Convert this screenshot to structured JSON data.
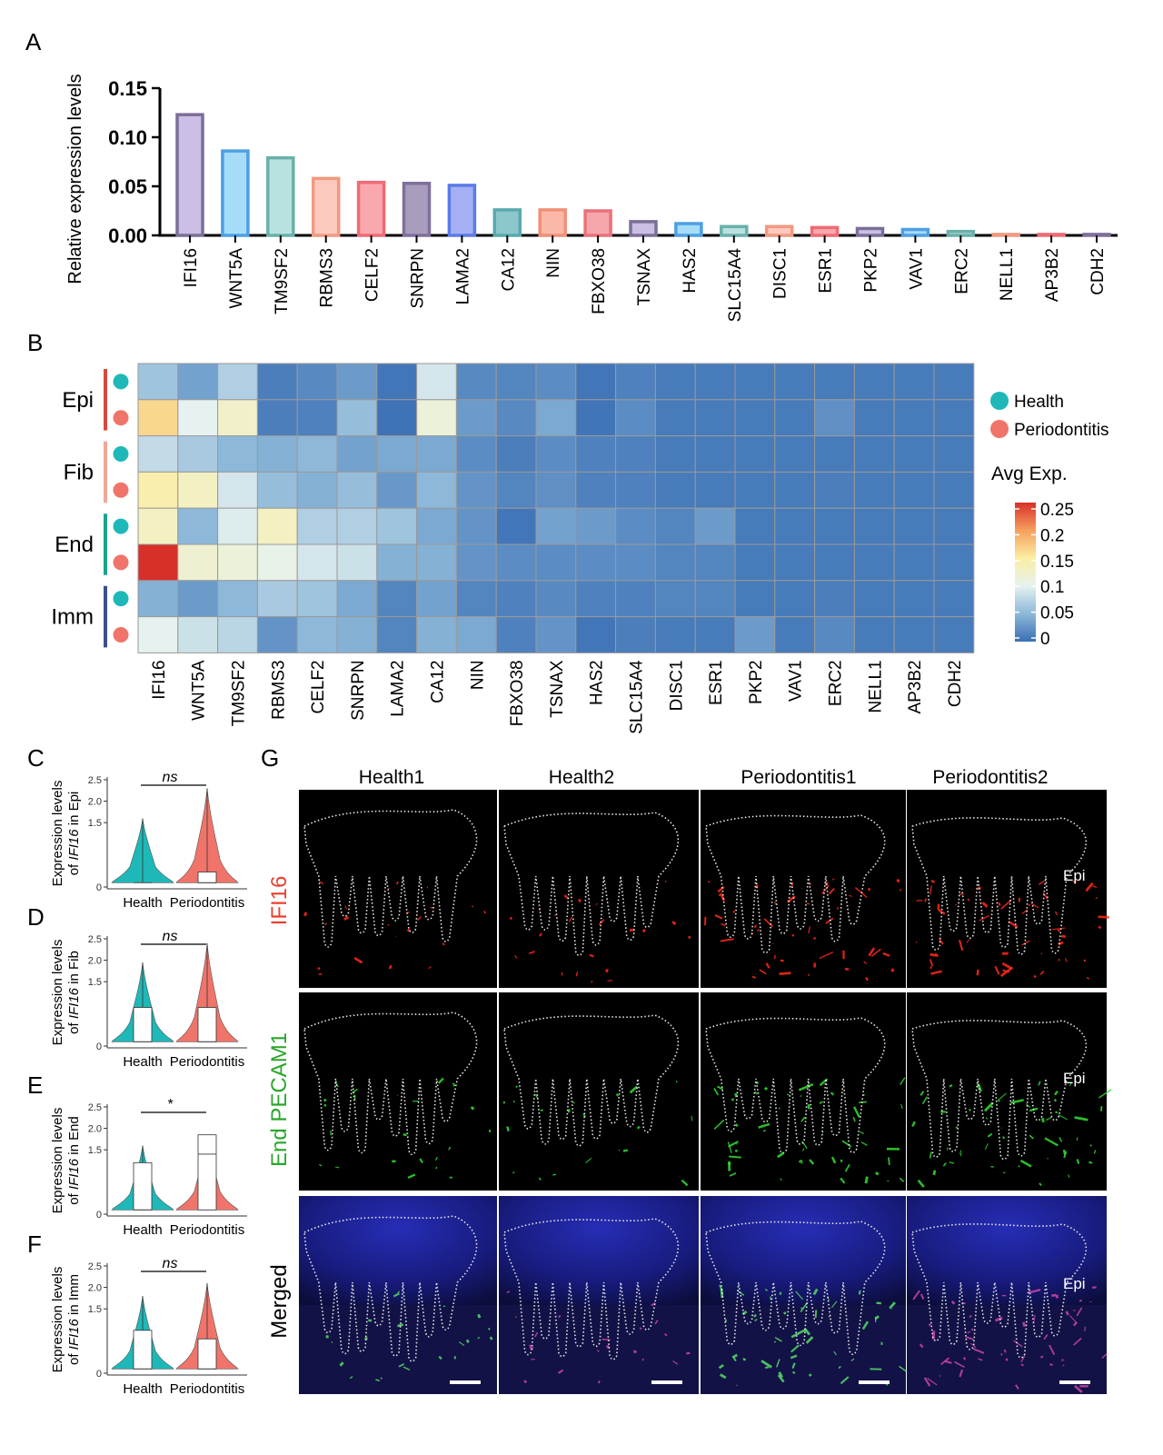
{
  "panels": {
    "A": "A",
    "B": "B",
    "C": "C",
    "D": "D",
    "E": "E",
    "F": "F",
    "G": "G"
  },
  "colors": {
    "health": "#1fb8b8",
    "periodontitis": "#f0746a",
    "bar_fills": [
      "#cbbfe6",
      "#a6dcf7",
      "#b9e2df",
      "#fcc9be",
      "#f9a9ae",
      "#a99dbd",
      "#a4b0f3",
      "#8cc7cb",
      "#fbb8a8",
      "#f5a6ab",
      "#cbbfe6",
      "#a6dcf7",
      "#b9e2df",
      "#fcc9be",
      "#f9a9ae",
      "#cbbfe6",
      "#a6dcf7",
      "#b9e2df",
      "#fcc9be",
      "#f9a9ae",
      "#a99dbd"
    ],
    "bar_strokes": [
      "#7b6f97",
      "#4d9fe3",
      "#6ab0ab",
      "#f09a80",
      "#ee6b76",
      "#7f6f9a",
      "#5d7be6",
      "#5aa8ad",
      "#f08f78",
      "#e8727a",
      "#7b6f97",
      "#4d9fe3",
      "#6ab0ab",
      "#f09a80",
      "#ee6b76",
      "#7b6f97",
      "#4d9fe3",
      "#6ab0ab",
      "#f09a80",
      "#ee6b76",
      "#7f6f9a"
    ]
  },
  "chart_data": [
    {
      "id": "A",
      "type": "bar",
      "ylabel": "Relative expression levels",
      "ylim": [
        0,
        0.15
      ],
      "yticks": [
        "0.00",
        "0.05",
        "0.10",
        "0.15"
      ],
      "categories": [
        "IFI16",
        "WNT5A",
        "TM9SF2",
        "RBMS3",
        "CELF2",
        "SNRPN",
        "LAMA2",
        "CA12",
        "NIN",
        "FBXO38",
        "TSNAX",
        "HAS2",
        "SLC15A4",
        "DISC1",
        "ESR1",
        "PKP2",
        "VAV1",
        "ERC2",
        "NELL1",
        "AP3B2",
        "CDH2"
      ],
      "values": [
        0.123,
        0.086,
        0.079,
        0.058,
        0.054,
        0.053,
        0.051,
        0.026,
        0.026,
        0.025,
        0.014,
        0.012,
        0.009,
        0.009,
        0.008,
        0.007,
        0.006,
        0.004,
        0.001,
        0.001,
        0.001
      ]
    },
    {
      "id": "B",
      "type": "heatmap",
      "columns": [
        "IFI16",
        "WNT5A",
        "TM9SF2",
        "RBMS3",
        "CELF2",
        "SNRPN",
        "LAMA2",
        "CA12",
        "NIN",
        "FBXO38",
        "TSNAX",
        "HAS2",
        "SLC15A4",
        "DISC1",
        "ESR1",
        "PKP2",
        "VAV1",
        "ERC2",
        "NELL1",
        "AP3B2",
        "CDH2"
      ],
      "groups": [
        "Epi",
        "Fib",
        "End",
        "Imm"
      ],
      "group_colors": [
        "#d84a3c",
        "#f2a796",
        "#1aa48c",
        "#3a4f8c"
      ],
      "row_conditions": [
        "Health",
        "Periodontitis",
        "Health",
        "Periodontitis",
        "Health",
        "Periodontitis",
        "Health",
        "Periodontitis"
      ],
      "values": [
        [
          0.06,
          0.035,
          0.07,
          0.01,
          0.018,
          0.03,
          0.005,
          0.09,
          0.018,
          0.015,
          0.02,
          0.005,
          0.012,
          0.008,
          0.008,
          0.008,
          0.008,
          0.008,
          0.008,
          0.008,
          0.008
        ],
        [
          0.165,
          0.1,
          0.125,
          0.01,
          0.012,
          0.055,
          0.003,
          0.115,
          0.03,
          0.018,
          0.04,
          0.004,
          0.02,
          0.008,
          0.008,
          0.008,
          0.008,
          0.022,
          0.008,
          0.008,
          0.008
        ],
        [
          0.08,
          0.065,
          0.05,
          0.045,
          0.05,
          0.035,
          0.04,
          0.04,
          0.02,
          0.01,
          0.02,
          0.012,
          0.012,
          0.008,
          0.008,
          0.008,
          0.008,
          0.008,
          0.008,
          0.008,
          0.008
        ],
        [
          0.145,
          0.13,
          0.09,
          0.055,
          0.045,
          0.055,
          0.028,
          0.05,
          0.025,
          0.015,
          0.022,
          0.012,
          0.012,
          0.008,
          0.008,
          0.008,
          0.008,
          0.01,
          0.008,
          0.008,
          0.008
        ],
        [
          0.13,
          0.05,
          0.095,
          0.13,
          0.07,
          0.07,
          0.06,
          0.04,
          0.025,
          0.005,
          0.035,
          0.03,
          0.02,
          0.015,
          0.03,
          0.008,
          0.008,
          0.008,
          0.008,
          0.008,
          0.008
        ],
        [
          0.25,
          0.12,
          0.115,
          0.105,
          0.09,
          0.085,
          0.045,
          0.045,
          0.025,
          0.02,
          0.02,
          0.02,
          0.02,
          0.015,
          0.015,
          0.008,
          0.008,
          0.008,
          0.008,
          0.008,
          0.008
        ],
        [
          0.045,
          0.03,
          0.05,
          0.065,
          0.06,
          0.04,
          0.015,
          0.035,
          0.015,
          0.012,
          0.018,
          0.012,
          0.012,
          0.015,
          0.015,
          0.008,
          0.008,
          0.01,
          0.008,
          0.008,
          0.008
        ],
        [
          0.1,
          0.085,
          0.075,
          0.025,
          0.05,
          0.045,
          0.015,
          0.045,
          0.04,
          0.012,
          0.025,
          0.005,
          0.01,
          0.008,
          0.008,
          0.03,
          0.008,
          0.018,
          0.008,
          0.008,
          0.008
        ]
      ],
      "legend_items": [
        "Health",
        "Periodontitis"
      ],
      "colorbar_title": "Avg Exp.",
      "colorbar_ticks": [
        "0.25",
        "0.2",
        "0.15",
        "0.1",
        "0.05",
        "0"
      ],
      "range": [
        0,
        0.25
      ]
    },
    {
      "id": "C",
      "type": "violin",
      "cell_type": "Epi",
      "ylabel_1": "Expression levels",
      "ylabel_2a": "of ",
      "ylabel_gene": "IFI16",
      "ylabel_2b": " in Epi",
      "yticks": [
        "0",
        "1.5",
        "2.0",
        "2.5"
      ],
      "ylim": [
        0,
        2.5
      ],
      "categories": [
        "Health",
        "Periodontitis"
      ],
      "significance": "ns",
      "health": {
        "min": 0.1,
        "max": 1.6,
        "median": 0.1,
        "q3": 0.1
      },
      "periodontitis": {
        "min": 0.1,
        "max": 2.3,
        "median": 0.1,
        "q3": 0.35
      }
    },
    {
      "id": "D",
      "type": "violin",
      "cell_type": "Fib",
      "ylabel_1": "Expression levels",
      "ylabel_2a": "of ",
      "ylabel_gene": "IFI16",
      "ylabel_2b": " in Fib",
      "yticks": [
        "0",
        "1.5",
        "2.0",
        "2.5"
      ],
      "ylim": [
        0,
        2.5
      ],
      "categories": [
        "Health",
        "Periodontitis"
      ],
      "significance": "ns",
      "health": {
        "min": 0.1,
        "max": 1.95,
        "median": 0.1,
        "q3": 0.9
      },
      "periodontitis": {
        "min": 0.1,
        "max": 2.4,
        "median": 0.1,
        "q3": 0.9
      }
    },
    {
      "id": "E",
      "type": "violin",
      "cell_type": "End",
      "ylabel_1": "Expression levels",
      "ylabel_2a": "of ",
      "ylabel_gene": "IFI16",
      "ylabel_2b": " in End",
      "yticks": [
        "0",
        "1.5",
        "2.0",
        "2.5"
      ],
      "ylim": [
        0,
        2.5
      ],
      "categories": [
        "Health",
        "Periodontitis"
      ],
      "significance": "*",
      "health": {
        "min": 0.1,
        "max": 1.6,
        "median": 0.1,
        "q3": 1.2
      },
      "periodontitis": {
        "min": 0.1,
        "max": 1.85,
        "median": 1.4,
        "q3": 1.85
      }
    },
    {
      "id": "F",
      "type": "violin",
      "cell_type": "Imm",
      "ylabel_1": "Expression levels",
      "ylabel_2a": "of ",
      "ylabel_gene": "IFI16",
      "ylabel_2b": " in Imm",
      "yticks": [
        "0",
        "1.5",
        "2.0",
        "2.5"
      ],
      "ylim": [
        0,
        2.5
      ],
      "categories": [
        "Health",
        "Periodontitis"
      ],
      "significance": "ns",
      "health": {
        "min": 0.1,
        "max": 1.8,
        "median": 0.1,
        "q3": 1.0
      },
      "periodontitis": {
        "min": 0.1,
        "max": 2.1,
        "median": 0.1,
        "q3": 0.8
      }
    }
  ],
  "panel_g": {
    "columns": [
      "Health1",
      "Health2",
      "Periodontitis1",
      "Periodontitis2"
    ],
    "rows": [
      "IFI16",
      "End PECAM1",
      "Merged"
    ],
    "row_colors": [
      "#e8402e",
      "#2aa62a",
      "#000000"
    ],
    "epi_label": "Epi"
  }
}
